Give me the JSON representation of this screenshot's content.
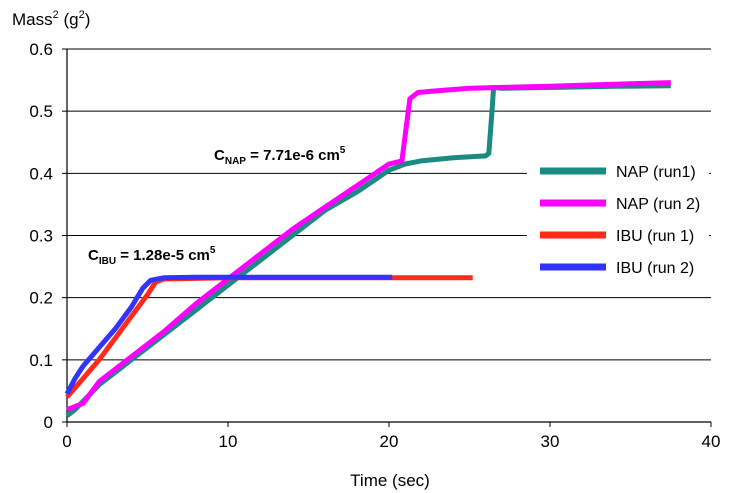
{
  "chart_data": {
    "type": "line",
    "xlabel": "Time (sec)",
    "ylabel_base": "Mass",
    "ylabel_sup": "2",
    "ylabel_unit_open": " (g",
    "ylabel_unit_sup": "2",
    "ylabel_unit_close": ")",
    "xlim": [
      0,
      40
    ],
    "ylim": [
      0,
      0.6
    ],
    "x_ticks": [
      0,
      10,
      20,
      30,
      40
    ],
    "x_tick_labels": [
      "0",
      "10",
      "20",
      "30",
      "40"
    ],
    "y_ticks": [
      0,
      0.1,
      0.2,
      0.3,
      0.4,
      0.5,
      0.6
    ],
    "y_tick_labels": [
      "0",
      "0.1",
      "0.2",
      "0.3",
      "0.4",
      "0.5",
      "0.6"
    ],
    "grid": "horizontal",
    "legend_position": "right",
    "series": [
      {
        "name": "NAP (run1)",
        "color": "#1a8a82",
        "x": [
          0,
          0.5,
          2,
          4,
          6,
          8,
          10,
          12,
          14,
          16,
          18,
          20,
          21,
          22,
          24,
          26,
          26.2,
          26.4,
          26.5,
          27,
          30,
          34,
          37.5
        ],
        "y": [
          0.01,
          0.02,
          0.06,
          0.1,
          0.14,
          0.18,
          0.22,
          0.26,
          0.3,
          0.34,
          0.37,
          0.405,
          0.415,
          0.42,
          0.425,
          0.428,
          0.432,
          0.5,
          0.538,
          0.537,
          0.538,
          0.54,
          0.541
        ]
      },
      {
        "name": "NAP (run 2)",
        "color": "#ff00ff",
        "x": [
          0,
          1,
          2,
          4,
          6,
          8,
          10,
          12,
          14,
          16,
          18,
          20,
          20.8,
          21,
          21.3,
          21.8,
          23,
          25,
          30,
          35,
          37.5
        ],
        "y": [
          0.02,
          0.03,
          0.065,
          0.105,
          0.145,
          0.19,
          0.23,
          0.27,
          0.31,
          0.345,
          0.38,
          0.415,
          0.42,
          0.46,
          0.52,
          0.53,
          0.533,
          0.537,
          0.54,
          0.544,
          0.546
        ]
      },
      {
        "name": "IBU (run 1)",
        "color": "#ff2a1a",
        "x": [
          0,
          1,
          2,
          3,
          4,
          5,
          5.5,
          6,
          8,
          10,
          15,
          20,
          25.2
        ],
        "y": [
          0.04,
          0.07,
          0.1,
          0.135,
          0.17,
          0.205,
          0.225,
          0.23,
          0.231,
          0.232,
          0.232,
          0.232,
          0.232
        ]
      },
      {
        "name": "IBU (run 2)",
        "color": "#3333ff",
        "x": [
          0,
          0.5,
          1,
          2,
          3,
          4,
          4.7,
          5.2,
          6,
          8,
          10,
          15,
          20.2
        ],
        "y": [
          0.045,
          0.07,
          0.09,
          0.12,
          0.15,
          0.185,
          0.215,
          0.228,
          0.232,
          0.233,
          0.233,
          0.233,
          0.233
        ]
      }
    ],
    "annotations": [
      {
        "base": "C",
        "sub": "NAP",
        "rest": " = 7.71e-6 cm",
        "sup": "5"
      },
      {
        "base": "C",
        "sub": "IBU",
        "rest": " = 1.28e-5 cm",
        "sup": "5"
      }
    ]
  }
}
